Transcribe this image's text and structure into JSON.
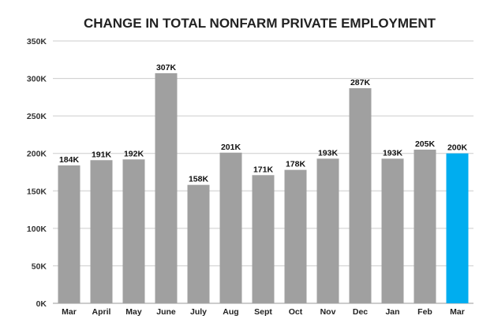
{
  "chart_data": {
    "type": "bar",
    "title": "CHANGE IN TOTAL NONFARM PRIVATE EMPLOYMENT",
    "categories": [
      "Mar",
      "April",
      "May",
      "June",
      "July",
      "Aug",
      "Sept",
      "Oct",
      "Nov",
      "Dec",
      "Jan",
      "Feb",
      "Mar"
    ],
    "values": [
      184000,
      191000,
      192000,
      307000,
      158000,
      201000,
      171000,
      178000,
      193000,
      287000,
      193000,
      205000,
      200000
    ],
    "data_labels": [
      "184K",
      "191K",
      "192K",
      "307K",
      "158K",
      "201K",
      "171K",
      "178K",
      "193K",
      "287K",
      "193K",
      "205K",
      "200K"
    ],
    "y_ticks": [
      {
        "value": 0,
        "label": "0K"
      },
      {
        "value": 50000,
        "label": "50K"
      },
      {
        "value": 100000,
        "label": "100K"
      },
      {
        "value": 150000,
        "label": "150K"
      },
      {
        "value": 200000,
        "label": "200K"
      },
      {
        "value": 250000,
        "label": "250K"
      },
      {
        "value": 300000,
        "label": "300K"
      },
      {
        "value": 350000,
        "label": "350K"
      }
    ],
    "ylim": [
      0,
      350000
    ],
    "xlabel": "",
    "ylabel": "",
    "grid": true,
    "legend": "none",
    "colors": {
      "bar": "#a0a0a0",
      "highlight_bar": "#00adef",
      "highlight_index": 12,
      "grid": "#cccccc",
      "axis": "#999999"
    }
  }
}
